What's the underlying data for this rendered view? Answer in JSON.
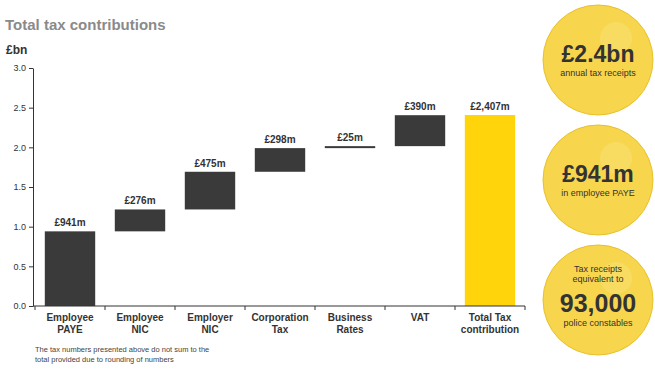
{
  "chart_data": {
    "type": "waterfall",
    "title": "Total tax contributions",
    "y_label": "£bn",
    "categories": [
      "Employee PAYE",
      "Employee NIC",
      "Employer NIC",
      "Corporation Tax",
      "Business Rates",
      "VAT",
      "Total Tax contribution"
    ],
    "series": [
      {
        "type": "waterfall",
        "color": "#3a3a3a",
        "values": [
          0.941,
          0.276,
          0.475,
          0.298,
          0.025,
          0.39,
          null
        ],
        "value_labels": [
          "£941m",
          "£276m",
          "£475m",
          "£298m",
          "£25m",
          "£390m",
          null
        ]
      },
      {
        "type": "bar",
        "color": "#ffd40a",
        "values": [
          null,
          null,
          null,
          null,
          null,
          null,
          2.407
        ],
        "value_labels": [
          null,
          null,
          null,
          null,
          null,
          null,
          "£2,407m"
        ]
      }
    ],
    "ylim": [
      0,
      3
    ],
    "yticks": [
      {
        "value": 0,
        "label": "0.0"
      },
      0.5,
      {
        "value": 1,
        "label": "1.0"
      },
      1.5,
      {
        "value": 2,
        "label": "2.0"
      },
      2.5,
      {
        "value": 3,
        "label": "3.0"
      }
    ],
    "grid": false,
    "data_labels": true,
    "note": "The tax numbers presented above do not sum to the total provided due to rounding of numbers",
    "callouts": [
      {
        "headline": "£2.4bn",
        "text": "annual tax receipts"
      },
      {
        "headline": "£941m",
        "text": "in employee PAYE"
      },
      {
        "pretext": "Tax receipts equivalent to",
        "headline": "93,000",
        "text": "police constables"
      }
    ]
  }
}
